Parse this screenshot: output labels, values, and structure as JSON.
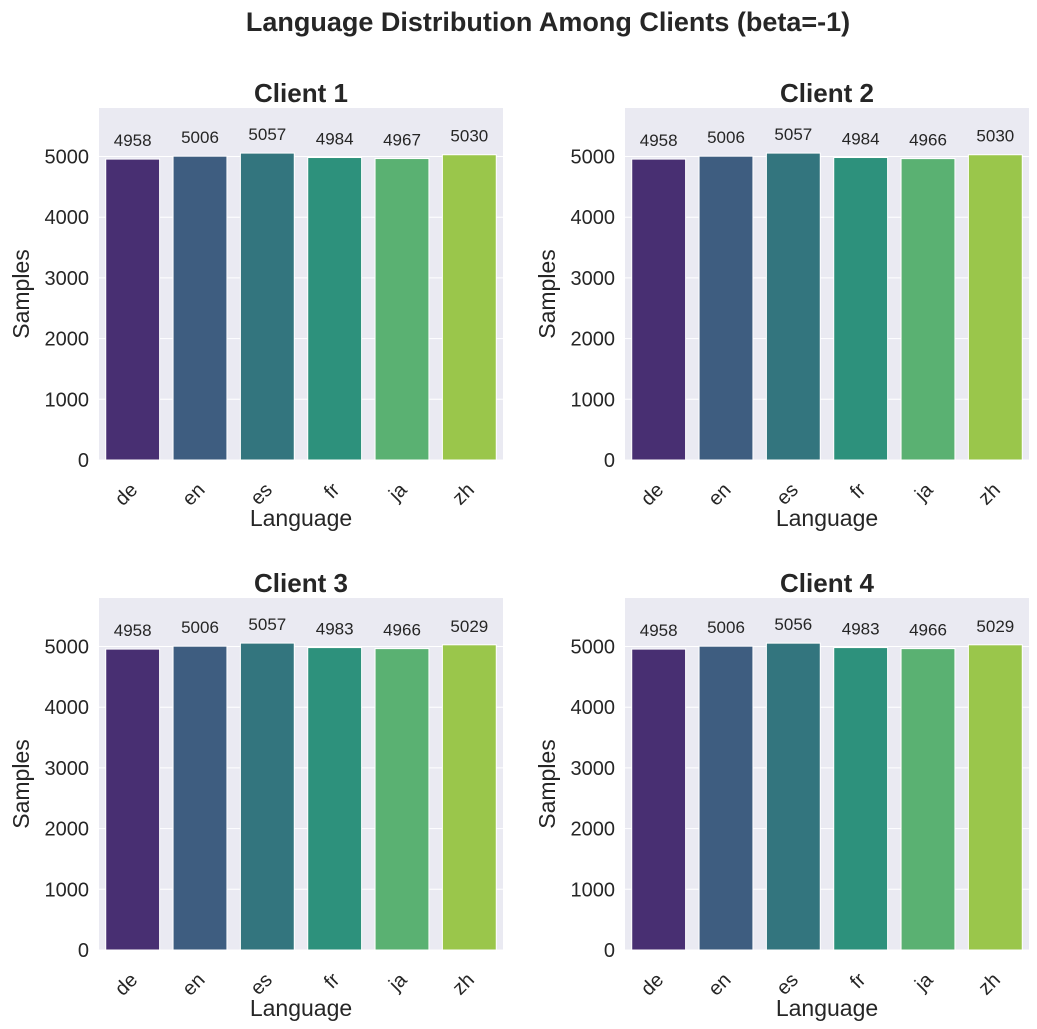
{
  "chart_data": {
    "title": "Language Distribution Among Clients (beta=-1)",
    "type": "bar",
    "grid": true,
    "subplots": [
      {
        "type": "bar",
        "title": "Client 1",
        "xlabel": "Language",
        "ylabel": "Samples",
        "categories": [
          "de",
          "en",
          "es",
          "fr",
          "ja",
          "zh"
        ],
        "values": [
          4958,
          5006,
          5057,
          4984,
          4967,
          5030
        ],
        "ylim": [
          0,
          5800
        ],
        "yticks": [
          0,
          1000,
          2000,
          3000,
          4000,
          5000
        ]
      },
      {
        "type": "bar",
        "title": "Client 2",
        "xlabel": "Language",
        "ylabel": "Samples",
        "categories": [
          "de",
          "en",
          "es",
          "fr",
          "ja",
          "zh"
        ],
        "values": [
          4958,
          5006,
          5057,
          4984,
          4966,
          5030
        ],
        "ylim": [
          0,
          5800
        ],
        "yticks": [
          0,
          1000,
          2000,
          3000,
          4000,
          5000
        ]
      },
      {
        "type": "bar",
        "title": "Client 3",
        "xlabel": "Language",
        "ylabel": "Samples",
        "categories": [
          "de",
          "en",
          "es",
          "fr",
          "ja",
          "zh"
        ],
        "values": [
          4958,
          5006,
          5057,
          4983,
          4966,
          5029
        ],
        "ylim": [
          0,
          5800
        ],
        "yticks": [
          0,
          1000,
          2000,
          3000,
          4000,
          5000
        ]
      },
      {
        "type": "bar",
        "title": "Client 4",
        "xlabel": "Language",
        "ylabel": "Samples",
        "categories": [
          "de",
          "en",
          "es",
          "fr",
          "ja",
          "zh"
        ],
        "values": [
          4958,
          5006,
          5056,
          4983,
          4966,
          5029
        ],
        "ylim": [
          0,
          5800
        ],
        "yticks": [
          0,
          1000,
          2000,
          3000,
          4000,
          5000
        ]
      }
    ],
    "colors": [
      "#482f72",
      "#3e5d80",
      "#33757e",
      "#2d917c",
      "#5ab172",
      "#9ac64b"
    ],
    "background": "#eaeaf2",
    "grid_color": "#ffffff"
  }
}
